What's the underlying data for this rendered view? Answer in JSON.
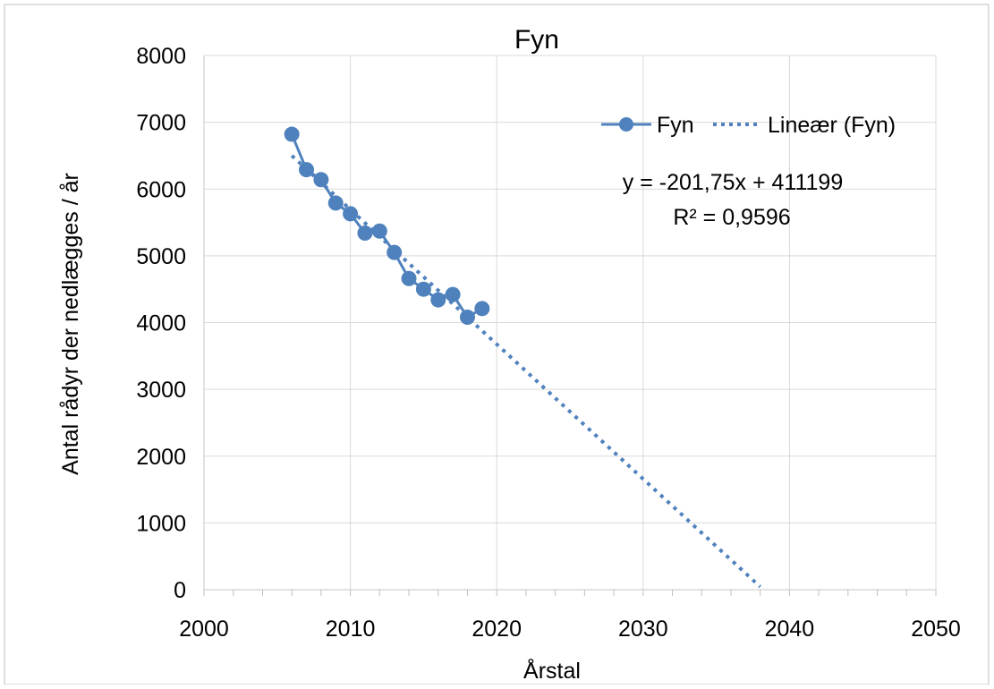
{
  "colors": {
    "series": "#4F81BD",
    "grid": "#D9D9D9",
    "border": "#BFBFBF"
  },
  "chart_data": {
    "type": "scatter",
    "title": "Fyn",
    "xlabel": "Årstal",
    "ylabel": "Antal rådyr der nedlægges / år",
    "xlim": [
      2000,
      2050
    ],
    "ylim": [
      0,
      8000
    ],
    "xticks": [
      "2000",
      "2010",
      "2020",
      "2030",
      "2040",
      "2050"
    ],
    "yticks": [
      "0",
      "1000",
      "2000",
      "3000",
      "4000",
      "5000",
      "6000",
      "7000",
      "8000"
    ],
    "x_minor_step": 2,
    "grid": true,
    "legend_position": "top-right",
    "series": [
      {
        "name": "Fyn",
        "style": "line-markers",
        "x": [
          2006,
          2007,
          2008,
          2009,
          2010,
          2011,
          2012,
          2013,
          2014,
          2015,
          2016,
          2017,
          2018,
          2019
        ],
        "y": [
          6820,
          6290,
          6140,
          5790,
          5630,
          5340,
          5370,
          5050,
          4660,
          4500,
          4340,
          4420,
          4080,
          4210
        ]
      },
      {
        "name": "Lineær (Fyn)",
        "style": "dotted-trendline",
        "x": [
          2006,
          2038
        ],
        "y": [
          6500,
          44
        ]
      }
    ],
    "annotation": {
      "equation": "y = -201,75x + 411199",
      "r_squared": "R² = 0,9596"
    }
  }
}
